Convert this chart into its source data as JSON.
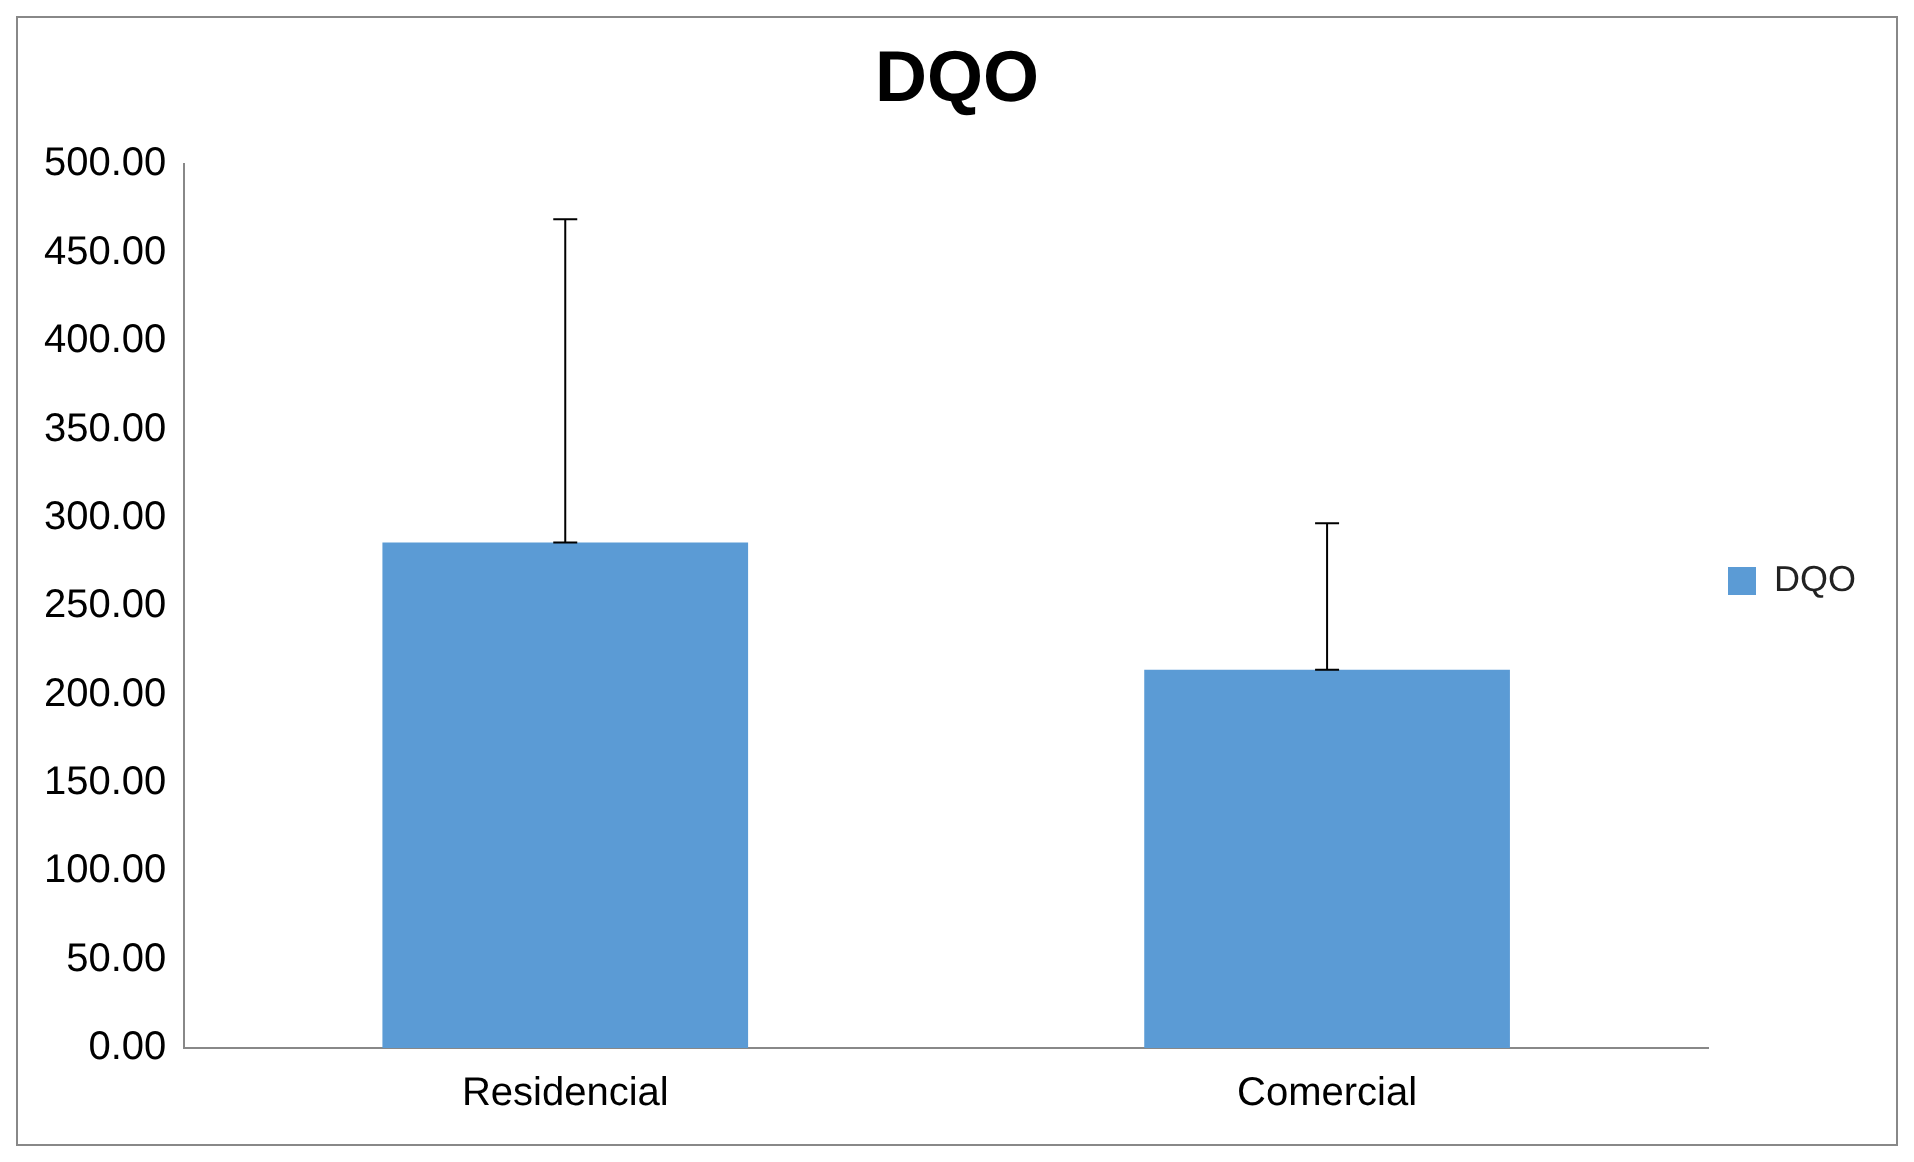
{
  "chart_data": {
    "type": "bar",
    "title": "DQO",
    "categories": [
      "Residencial",
      "Comercial"
    ],
    "series": [
      {
        "name": "DQO",
        "color": "#5b9bd5",
        "values": [
          286,
          214
        ],
        "errors": [
          [
            286,
            469
          ],
          [
            214,
            297
          ]
        ]
      }
    ],
    "ylim": [
      0,
      500
    ],
    "yticks": [
      {
        "value": 0,
        "label": "0.00"
      },
      {
        "value": 50,
        "label": "50.00"
      },
      {
        "value": 100,
        "label": "100.00"
      },
      {
        "value": 150,
        "label": "150.00"
      },
      {
        "value": 200,
        "label": "200.00"
      },
      {
        "value": 250,
        "label": "250.00"
      },
      {
        "value": 300,
        "label": "300.00"
      },
      {
        "value": 350,
        "label": "350.00"
      },
      {
        "value": 400,
        "label": "400.00"
      },
      {
        "value": 450,
        "label": "450.00"
      },
      {
        "value": 500,
        "label": "500.00"
      }
    ],
    "grid": false,
    "legend": "right"
  }
}
